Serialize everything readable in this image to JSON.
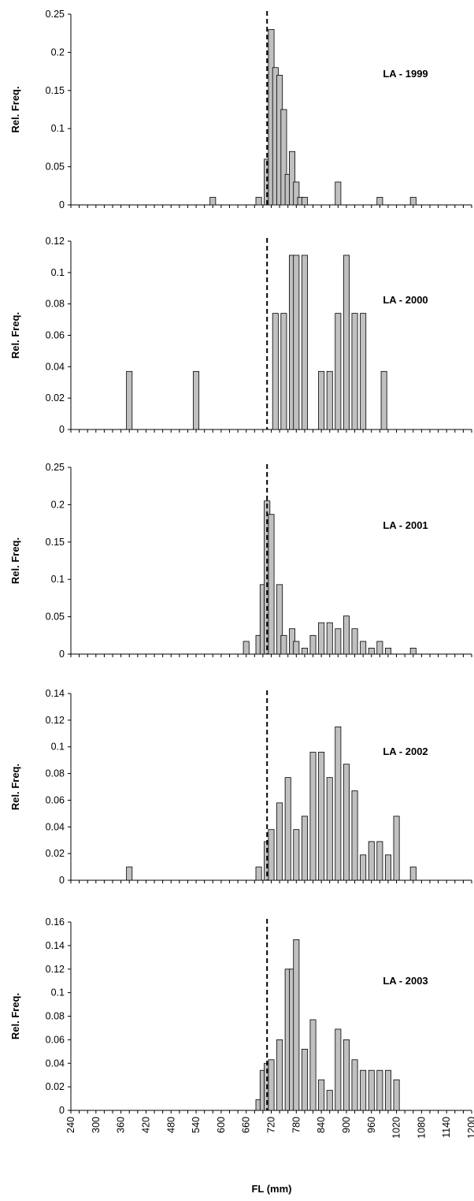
{
  "figure": {
    "xlabel": "FL (mm)",
    "ylabel": "Rel. Freq."
  },
  "chart_data": [
    {
      "type": "bar",
      "title": "LA - 1999",
      "ylabel": "Rel. Freq.",
      "xlabel": "",
      "ylim": [
        0,
        0.25
      ],
      "yticks": [
        "0",
        "0.05",
        "0.1",
        "0.15",
        "0.2",
        "0.25"
      ],
      "xlim": [
        240,
        1200
      ],
      "reference_line_x": 710,
      "x": [
        580,
        690,
        700,
        710,
        720,
        730,
        740,
        750,
        760,
        770,
        780,
        790,
        800,
        810,
        820,
        830,
        840,
        850,
        860,
        880,
        900,
        950,
        980,
        1000,
        1060
      ],
      "values": [
        0.01,
        0.01,
        0.0,
        0.06,
        0.23,
        0.18,
        0.17,
        0.125,
        0.04,
        0.07,
        0.03,
        0.01,
        0.01,
        0.0,
        0.0,
        0.0,
        0.0,
        0.0,
        0.0,
        0.03,
        0.0,
        0.0,
        0.01,
        0.0,
        0.01
      ]
    },
    {
      "type": "bar",
      "title": "LA - 2000",
      "ylabel": "Rel. Freq.",
      "xlabel": "",
      "ylim": [
        0,
        0.12
      ],
      "yticks": [
        "0",
        "0.02",
        "0.04",
        "0.06",
        "0.08",
        "0.1",
        "0.12"
      ],
      "xlim": [
        240,
        1200
      ],
      "reference_line_x": 710,
      "x": [
        380,
        540,
        730,
        750,
        770,
        780,
        800,
        820,
        840,
        860,
        880,
        900,
        920,
        940,
        960,
        990
      ],
      "values": [
        0.037,
        0.037,
        0.074,
        0.074,
        0.111,
        0.111,
        0.111,
        0.0,
        0.037,
        0.037,
        0.074,
        0.111,
        0.074,
        0.074,
        0.0,
        0.037
      ]
    },
    {
      "type": "bar",
      "title": "LA - 2001",
      "ylabel": "Rel. Freq.",
      "xlabel": "",
      "ylim": [
        0,
        0.25
      ],
      "yticks": [
        "0",
        "0.05",
        "0.1",
        "0.15",
        "0.2",
        "0.25"
      ],
      "xlim": [
        240,
        1200
      ],
      "reference_line_x": 710,
      "x": [
        660,
        690,
        700,
        710,
        720,
        740,
        750,
        770,
        780,
        800,
        820,
        840,
        860,
        880,
        900,
        920,
        940,
        960,
        980,
        1000,
        1020,
        1060
      ],
      "values": [
        0.017,
        0.025,
        0.093,
        0.205,
        0.187,
        0.093,
        0.025,
        0.034,
        0.017,
        0.008,
        0.025,
        0.042,
        0.042,
        0.034,
        0.051,
        0.034,
        0.017,
        0.008,
        0.017,
        0.008,
        0.0,
        0.008
      ]
    },
    {
      "type": "bar",
      "title": "LA - 2002",
      "ylabel": "Rel. Freq.",
      "xlabel": "",
      "ylim": [
        0,
        0.14
      ],
      "yticks": [
        "0",
        "0.02",
        "0.04",
        "0.06",
        "0.08",
        "0.1",
        "0.12",
        "0.14"
      ],
      "xlim": [
        240,
        1200
      ],
      "reference_line_x": 710,
      "x": [
        380,
        690,
        710,
        720,
        740,
        760,
        780,
        800,
        820,
        840,
        860,
        880,
        900,
        920,
        940,
        960,
        980,
        1000,
        1020,
        1060
      ],
      "values": [
        0.01,
        0.01,
        0.029,
        0.038,
        0.058,
        0.077,
        0.038,
        0.048,
        0.096,
        0.096,
        0.077,
        0.115,
        0.087,
        0.067,
        0.019,
        0.029,
        0.029,
        0.019,
        0.048,
        0.01
      ]
    },
    {
      "type": "bar",
      "title": "LA - 2003",
      "ylabel": "Rel. Freq.",
      "xlabel": "FL (mm)",
      "ylim": [
        0,
        0.16
      ],
      "yticks": [
        "0",
        "0.02",
        "0.04",
        "0.06",
        "0.08",
        "0.1",
        "0.12",
        "0.14",
        "0.16"
      ],
      "xlim": [
        240,
        1200
      ],
      "xticks": [
        "240",
        "300",
        "360",
        "420",
        "480",
        "540",
        "600",
        "660",
        "720",
        "780",
        "840",
        "900",
        "960",
        "1020",
        "1080",
        "1140",
        "1200"
      ],
      "reference_line_x": 710,
      "x": [
        690,
        700,
        710,
        720,
        740,
        760,
        770,
        780,
        800,
        820,
        840,
        860,
        880,
        900,
        920,
        940,
        960,
        980,
        1000,
        1020
      ],
      "values": [
        0.009,
        0.034,
        0.04,
        0.043,
        0.06,
        0.12,
        0.12,
        0.145,
        0.052,
        0.077,
        0.026,
        0.017,
        0.069,
        0.06,
        0.043,
        0.034,
        0.034,
        0.034,
        0.034,
        0.026
      ]
    }
  ]
}
